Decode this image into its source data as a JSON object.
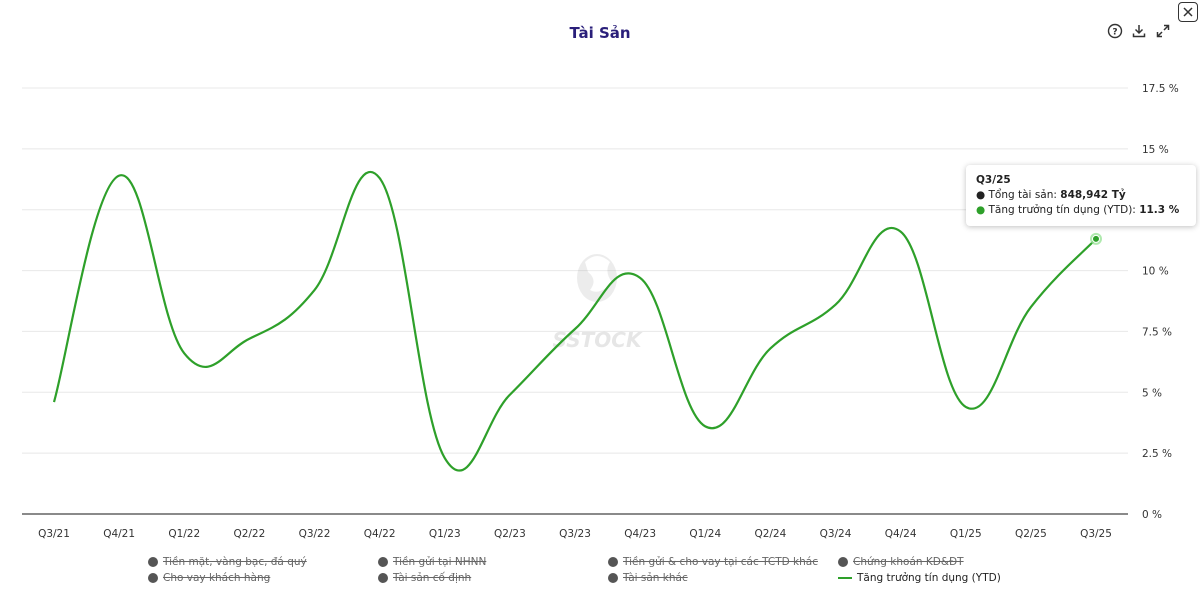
{
  "header": {
    "title": "Tài Sản"
  },
  "toolbar": {
    "help": "help-icon",
    "download": "download-icon",
    "expand": "expand-icon",
    "close": "close-icon"
  },
  "watermark": "SSTOCK",
  "tooltip": {
    "title": "Q3/25",
    "row1_label": "Tổng tài sản: ",
    "row1_value": "848,942 Tỷ",
    "row2_label": "Tăng trưởng tín dụng (YTD): ",
    "row2_value": "11.3 %"
  },
  "legend": [
    {
      "label": "Tiền mặt, vàng bạc, đá quý",
      "active": false
    },
    {
      "label": "Tiền gửi tại NHNN",
      "active": false
    },
    {
      "label": "Tiền gửi & cho vay tại các TCTD khác",
      "active": false
    },
    {
      "label": "Chứng khoán KD&ĐT",
      "active": false
    },
    {
      "label": "Cho vay khách hàng",
      "active": false
    },
    {
      "label": "Tài sản cố định",
      "active": false
    },
    {
      "label": "Tài sản khác",
      "active": false
    },
    {
      "label": "Tăng trưởng tín dụng (YTD)",
      "active": true
    }
  ],
  "chart_data": {
    "type": "line",
    "title": "Tài Sản",
    "categories": [
      "Q3/21",
      "Q4/21",
      "Q1/22",
      "Q2/22",
      "Q3/22",
      "Q4/22",
      "Q1/23",
      "Q2/23",
      "Q3/23",
      "Q4/23",
      "Q1/24",
      "Q2/24",
      "Q3/24",
      "Q4/24",
      "Q1/25",
      "Q2/25",
      "Q3/25"
    ],
    "series": [
      {
        "name": "Tăng trưởng tín dụng (YTD)",
        "color": "#2ea02a",
        "values": [
          4.6,
          13.9,
          6.6,
          7.2,
          9.2,
          13.8,
          2.3,
          4.9,
          7.6,
          9.7,
          3.6,
          6.8,
          8.6,
          11.6,
          4.4,
          8.5,
          11.3
        ]
      }
    ],
    "y_ticks": [
      0,
      2.5,
      5,
      7.5,
      10,
      12.5,
      15,
      17.5
    ],
    "y_tick_labels": [
      "0 %",
      "2.5 %",
      "5 %",
      "7.5 %",
      "10 %",
      "",
      "15 %",
      "17.5 %"
    ],
    "ylim": [
      0,
      17.5
    ],
    "y_axis_side": "right",
    "grid": true,
    "highlight_index": 16
  }
}
